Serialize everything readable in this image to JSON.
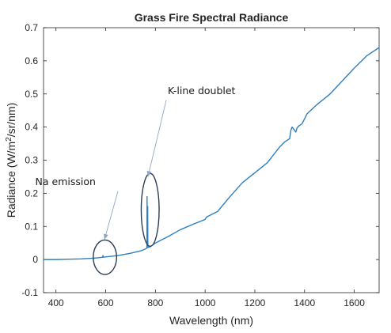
{
  "chart_data": {
    "type": "line",
    "title": "Grass Fire Spectral Radiance",
    "xlabel": "Wavelength (nm)",
    "ylabel_parts": [
      "Radiance (W/m",
      "2",
      "/sr/nm)"
    ],
    "xlim": [
      350,
      1700
    ],
    "ylim": [
      -0.1,
      0.7
    ],
    "xticks": [
      400,
      600,
      800,
      1000,
      1200,
      1400,
      1600
    ],
    "yticks": [
      -0.1,
      0,
      0.1,
      0.2,
      0.3,
      0.4,
      0.5,
      0.6,
      0.7
    ],
    "grid": false,
    "series": [
      {
        "color": "#2e7fbf",
        "x": [
          350,
          400,
          450,
          500,
          550,
          580,
          588,
          589,
          590,
          600,
          650,
          700,
          740,
          760,
          766,
          766.5,
          767,
          768,
          769,
          769.5,
          770,
          771,
          780,
          800,
          850,
          900,
          950,
          1000,
          1005,
          1050,
          1100,
          1150,
          1200,
          1250,
          1300,
          1320,
          1340,
          1345,
          1350,
          1360,
          1365,
          1370,
          1380,
          1390,
          1400,
          1410,
          1450,
          1500,
          1550,
          1600,
          1650,
          1700
        ],
        "y": [
          0.0,
          0.0,
          0.001,
          0.002,
          0.004,
          0.006,
          0.007,
          0.012,
          0.007,
          0.008,
          0.012,
          0.019,
          0.026,
          0.032,
          0.035,
          0.19,
          0.04,
          0.11,
          0.16,
          0.05,
          0.036,
          0.037,
          0.039,
          0.05,
          0.069,
          0.09,
          0.106,
          0.121,
          0.128,
          0.145,
          0.19,
          0.232,
          0.262,
          0.292,
          0.34,
          0.355,
          0.365,
          0.39,
          0.4,
          0.39,
          0.385,
          0.398,
          0.405,
          0.41,
          0.425,
          0.44,
          0.468,
          0.498,
          0.538,
          0.578,
          0.615,
          0.64
        ]
      }
    ],
    "annotations": [
      {
        "text": "Na emission",
        "x": 560,
        "y": 0.225,
        "target_x": 595,
        "target_y": 0.06
      },
      {
        "text": "K-line doublet",
        "x": 850,
        "y": 0.5,
        "target_x": 770,
        "target_y": 0.25
      }
    ],
    "ellipses": [
      {
        "cx": 597,
        "cy": 0.007,
        "rx": 47,
        "ry": 0.052
      },
      {
        "cx": 779,
        "cy": 0.15,
        "rx": 36,
        "ry": 0.11
      }
    ]
  }
}
